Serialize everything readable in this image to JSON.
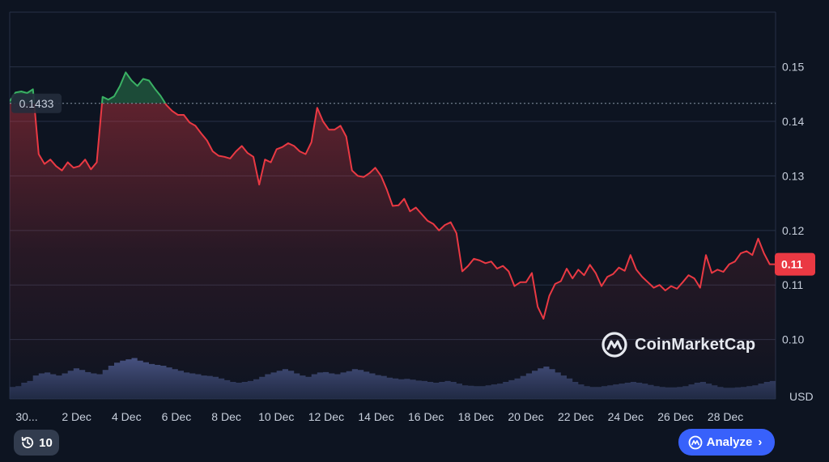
{
  "chart_data": {
    "type": "area",
    "currency_label": "USD",
    "y_ticks": [
      0.1,
      0.11,
      0.12,
      0.13,
      0.14,
      0.15
    ],
    "y_tick_labels": [
      "0.10",
      "0.11",
      "0.12",
      "0.13",
      "0.14",
      "0.15"
    ],
    "ylim": [
      0.09,
      0.159
    ],
    "x_tick_labels": [
      "30...",
      "2 Dec",
      "4 Dec",
      "6 Dec",
      "8 Dec",
      "10 Dec",
      "12 Dec",
      "14 Dec",
      "16 Dec",
      "18 Dec",
      "20 Dec",
      "22 Dec",
      "24 Dec",
      "26 Dec",
      "28 Dec"
    ],
    "reference_price": 0.1433,
    "reference_label": "0.1433",
    "current_price": 0.11,
    "current_label": "0.11",
    "grid": true,
    "colors": {
      "up": "#3ab164",
      "down": "#ea3943",
      "grid": "#273146",
      "reference_line": "#8a93a6",
      "volume": "#3a4a7a",
      "background": "#0d1421"
    },
    "series": [
      {
        "values": [
          0.1437,
          0.1453,
          0.1455,
          0.1452,
          0.1459,
          0.134,
          0.1322,
          0.133,
          0.1318,
          0.131,
          0.1325,
          0.1315,
          0.1318,
          0.133,
          0.1312,
          0.1325,
          0.1445,
          0.144,
          0.1446,
          0.1465,
          0.149,
          0.1475,
          0.1465,
          0.1478,
          0.1475,
          0.146,
          0.1447,
          0.143,
          0.1419,
          0.1412,
          0.1412,
          0.1398,
          0.1392,
          0.1378,
          0.1365,
          0.1345,
          0.1337,
          0.1335,
          0.1332,
          0.1345,
          0.1355,
          0.1342,
          0.1335,
          0.1284,
          0.133,
          0.1325,
          0.1349,
          0.1353,
          0.136,
          0.1355,
          0.1345,
          0.134,
          0.1362,
          0.1425,
          0.14,
          0.1385,
          0.1385,
          0.1392,
          0.1372,
          0.131,
          0.13,
          0.1298,
          0.1305,
          0.1315,
          0.13,
          0.1275,
          0.1245,
          0.1246,
          0.1258,
          0.1235,
          0.1242,
          0.123,
          0.1218,
          0.1212,
          0.12,
          0.121,
          0.1215,
          0.1195,
          0.1125,
          0.1135,
          0.1148,
          0.1145,
          0.114,
          0.1143,
          0.113,
          0.1135,
          0.1125,
          0.1098,
          0.1105,
          0.1105,
          0.1122,
          0.106,
          0.1038,
          0.108,
          0.1102,
          0.1107,
          0.113,
          0.1112,
          0.1128,
          0.1118,
          0.1137,
          0.1122,
          0.1098,
          0.1115,
          0.112,
          0.1132,
          0.1126,
          0.1155,
          0.1128,
          0.1115,
          0.1105,
          0.1095,
          0.11,
          0.109,
          0.1098,
          0.1093,
          0.1105,
          0.1118,
          0.1112,
          0.1095,
          0.1155,
          0.1122,
          0.1128,
          0.1124,
          0.1138,
          0.1143,
          0.1158,
          0.1162,
          0.1155,
          0.1185,
          0.1158,
          0.1138,
          0.1138
        ]
      }
    ],
    "volume_series": [
      0.28,
      0.3,
      0.38,
      0.42,
      0.55,
      0.6,
      0.62,
      0.58,
      0.55,
      0.6,
      0.66,
      0.72,
      0.68,
      0.63,
      0.6,
      0.58,
      0.68,
      0.78,
      0.85,
      0.9,
      0.93,
      0.96,
      0.9,
      0.86,
      0.82,
      0.8,
      0.78,
      0.74,
      0.7,
      0.66,
      0.62,
      0.6,
      0.58,
      0.55,
      0.54,
      0.52,
      0.48,
      0.44,
      0.4,
      0.38,
      0.4,
      0.42,
      0.46,
      0.52,
      0.58,
      0.62,
      0.66,
      0.7,
      0.66,
      0.6,
      0.55,
      0.52,
      0.58,
      0.62,
      0.63,
      0.6,
      0.58,
      0.62,
      0.65,
      0.7,
      0.68,
      0.64,
      0.6,
      0.56,
      0.54,
      0.5,
      0.48,
      0.46,
      0.47,
      0.45,
      0.43,
      0.42,
      0.4,
      0.38,
      0.4,
      0.42,
      0.4,
      0.36,
      0.32,
      0.31,
      0.3,
      0.3,
      0.32,
      0.34,
      0.36,
      0.4,
      0.44,
      0.48,
      0.54,
      0.6,
      0.66,
      0.72,
      0.76,
      0.7,
      0.62,
      0.55,
      0.48,
      0.4,
      0.34,
      0.3,
      0.28,
      0.28,
      0.3,
      0.32,
      0.34,
      0.36,
      0.38,
      0.4,
      0.38,
      0.36,
      0.33,
      0.3,
      0.28,
      0.27,
      0.27,
      0.28,
      0.3,
      0.34,
      0.38,
      0.4,
      0.36,
      0.32,
      0.28,
      0.26,
      0.26,
      0.27,
      0.28,
      0.3,
      0.32,
      0.36,
      0.4,
      0.42
    ]
  },
  "buttons": {
    "history_count": "10",
    "analyze_label": "Analyze"
  },
  "watermark": {
    "brand": "CoinMarketCap"
  }
}
